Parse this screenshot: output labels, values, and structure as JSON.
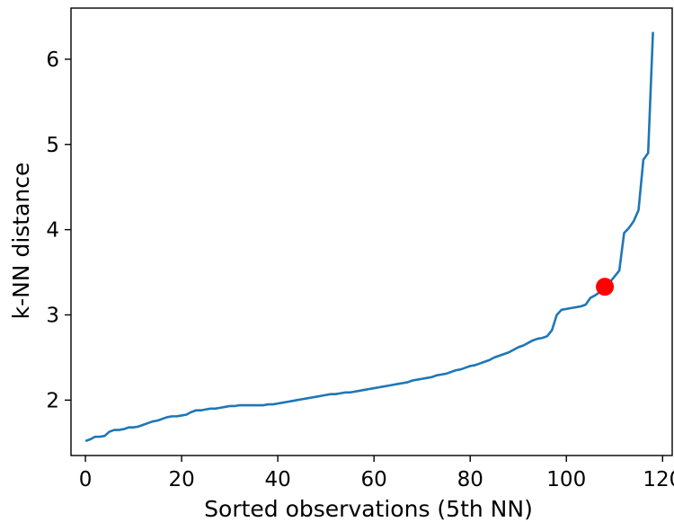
{
  "chart_data": {
    "type": "line",
    "title": "",
    "xlabel": "Sorted observations (5th NN)",
    "ylabel": "k-NN distance",
    "xlim": [
      -3,
      122
    ],
    "ylim": [
      1.35,
      6.6
    ],
    "xticks": [
      0,
      20,
      40,
      60,
      80,
      100,
      120
    ],
    "yticks": [
      2,
      3,
      4,
      5,
      6
    ],
    "grid": false,
    "legend": "none",
    "series": [
      {
        "color": "#1f77b4",
        "x": [
          0,
          1,
          2,
          3,
          4,
          5,
          6,
          7,
          8,
          9,
          10,
          11,
          12,
          13,
          14,
          15,
          16,
          17,
          18,
          19,
          20,
          21,
          22,
          23,
          24,
          25,
          26,
          27,
          28,
          29,
          30,
          31,
          32,
          33,
          34,
          35,
          36,
          37,
          38,
          39,
          40,
          41,
          42,
          43,
          44,
          45,
          46,
          47,
          48,
          49,
          50,
          51,
          52,
          53,
          54,
          55,
          56,
          57,
          58,
          59,
          60,
          61,
          62,
          63,
          64,
          65,
          66,
          67,
          68,
          69,
          70,
          71,
          72,
          73,
          74,
          75,
          76,
          77,
          78,
          79,
          80,
          81,
          82,
          83,
          84,
          85,
          86,
          87,
          88,
          89,
          90,
          91,
          92,
          93,
          94,
          95,
          96,
          97,
          98,
          99,
          100,
          101,
          102,
          103,
          104,
          105,
          106,
          107,
          108,
          109,
          110,
          111,
          112,
          113,
          114,
          115,
          116,
          117,
          118
        ],
        "values": [
          1.52,
          1.54,
          1.57,
          1.57,
          1.58,
          1.63,
          1.65,
          1.65,
          1.66,
          1.68,
          1.68,
          1.69,
          1.71,
          1.73,
          1.75,
          1.76,
          1.78,
          1.8,
          1.81,
          1.81,
          1.82,
          1.83,
          1.86,
          1.88,
          1.88,
          1.89,
          1.9,
          1.9,
          1.91,
          1.92,
          1.93,
          1.93,
          1.94,
          1.94,
          1.94,
          1.94,
          1.94,
          1.94,
          1.95,
          1.95,
          1.96,
          1.97,
          1.98,
          1.99,
          2.0,
          2.01,
          2.02,
          2.03,
          2.04,
          2.05,
          2.06,
          2.07,
          2.07,
          2.08,
          2.09,
          2.09,
          2.1,
          2.11,
          2.12,
          2.13,
          2.14,
          2.15,
          2.16,
          2.17,
          2.18,
          2.19,
          2.2,
          2.21,
          2.23,
          2.24,
          2.25,
          2.26,
          2.27,
          2.29,
          2.3,
          2.31,
          2.33,
          2.35,
          2.36,
          2.38,
          2.4,
          2.41,
          2.43,
          2.45,
          2.47,
          2.5,
          2.52,
          2.54,
          2.56,
          2.59,
          2.62,
          2.64,
          2.67,
          2.7,
          2.72,
          2.73,
          2.75,
          2.82,
          3.0,
          3.06,
          3.07,
          3.08,
          3.09,
          3.1,
          3.12,
          3.2,
          3.23,
          3.27,
          3.33,
          3.38,
          3.45,
          3.52,
          3.96,
          4.02,
          4.1,
          4.23,
          4.82,
          4.9,
          6.32
        ]
      }
    ],
    "highlight_point": {
      "x": 108,
      "y": 3.33,
      "color": "#ff0000"
    }
  }
}
